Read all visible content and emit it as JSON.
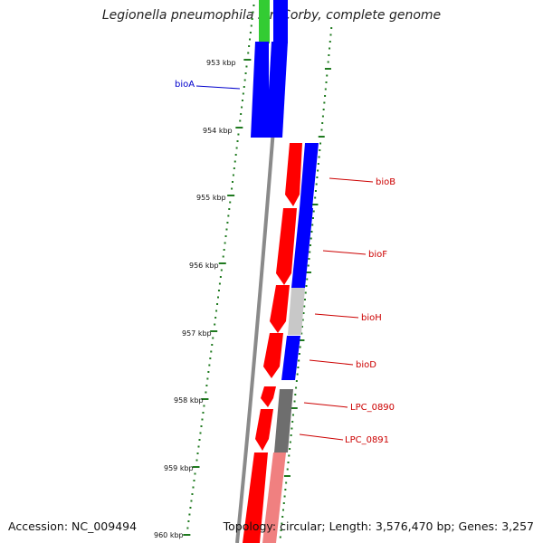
{
  "title": "Legionella pneumophila str. Corby, complete genome",
  "footer": {
    "accession": "Accession: NC_009494",
    "summary": "Topology: circular; Length: 3,576,470 bp; Genes: 3,257"
  },
  "ruler": {
    "labels": [
      "953 kbp",
      "954 kbp",
      "955 kbp",
      "956 kbp",
      "957 kbp",
      "958 kbp",
      "959 kbp",
      "960 kbp"
    ]
  },
  "genes": [
    {
      "label": "bioA",
      "strand": "forward",
      "color": "#0000ff",
      "label_color": "#0000cc"
    },
    {
      "label": "bioB",
      "strand": "reverse",
      "color": "#ff0000",
      "label_color": "#cc0000"
    },
    {
      "label": "bioF",
      "strand": "reverse",
      "color": "#ff0000",
      "label_color": "#cc0000"
    },
    {
      "label": "bioH",
      "strand": "reverse",
      "color": "#ff0000",
      "label_color": "#cc0000"
    },
    {
      "label": "bioD",
      "strand": "reverse",
      "color": "#ff0000",
      "label_color": "#cc0000"
    },
    {
      "label": "LPC_0890",
      "strand": "reverse",
      "color": "#ff0000",
      "label_color": "#cc0000"
    },
    {
      "label": "LPC_0891",
      "strand": "reverse",
      "color": "#ff0000",
      "label_color": "#cc0000"
    }
  ],
  "colors": {
    "backbone": "#8c8c8c",
    "tick": "#1f7a1f",
    "cog_blue": "#0000ff",
    "cog_green": "#33cc33",
    "cog_lightgray": "#c8c8c8",
    "cog_darkgray": "#6e6e6e",
    "cog_pink": "#f08080"
  }
}
